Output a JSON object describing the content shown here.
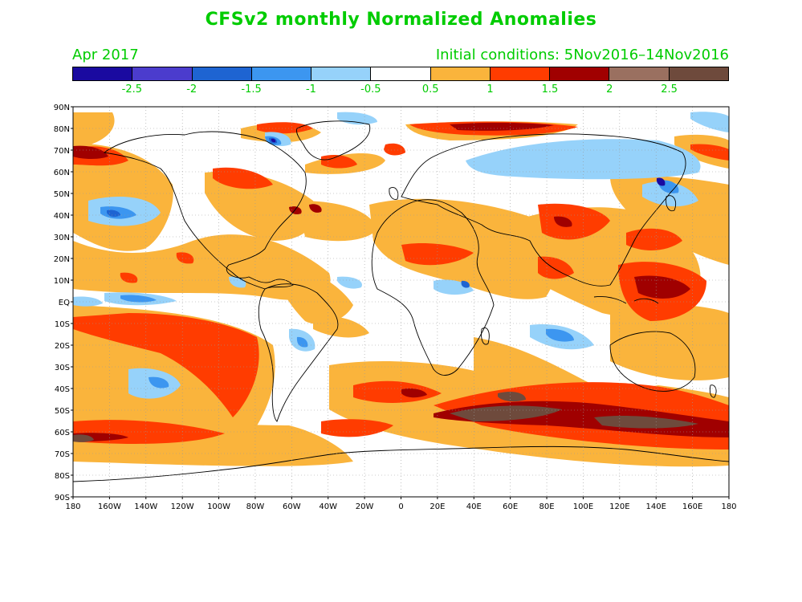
{
  "title": "CFSv2 monthly Normalized Anomalies",
  "month_label": "Apr 2017",
  "initial_conditions": "Initial conditions: 5Nov2016–14Nov2016",
  "colorbar": {
    "colors": [
      "#1a0aa0",
      "#4b3ccd",
      "#1e64d2",
      "#3c96f0",
      "#96d2fa",
      "#ffffff",
      "#fab43c",
      "#ff3c00",
      "#a00000",
      "#9a7060",
      "#6e4a3c"
    ],
    "labels": [
      "-2.5",
      "-2",
      "-1.5",
      "-1",
      "-0.5",
      "0.5",
      "1",
      "1.5",
      "2",
      "2.5"
    ]
  },
  "axes": {
    "lat_labels": [
      "90N",
      "80N",
      "70N",
      "60N",
      "50N",
      "40N",
      "30N",
      "20N",
      "10N",
      "EQ",
      "10S",
      "20S",
      "30S",
      "40S",
      "50S",
      "60S",
      "70S",
      "80S",
      "90S"
    ],
    "lon_labels": [
      "180",
      "160W",
      "140W",
      "120W",
      "100W",
      "80W",
      "60W",
      "40W",
      "20W",
      "0",
      "20E",
      "40E",
      "60E",
      "80E",
      "100E",
      "120E",
      "140E",
      "160E",
      "180"
    ]
  }
}
